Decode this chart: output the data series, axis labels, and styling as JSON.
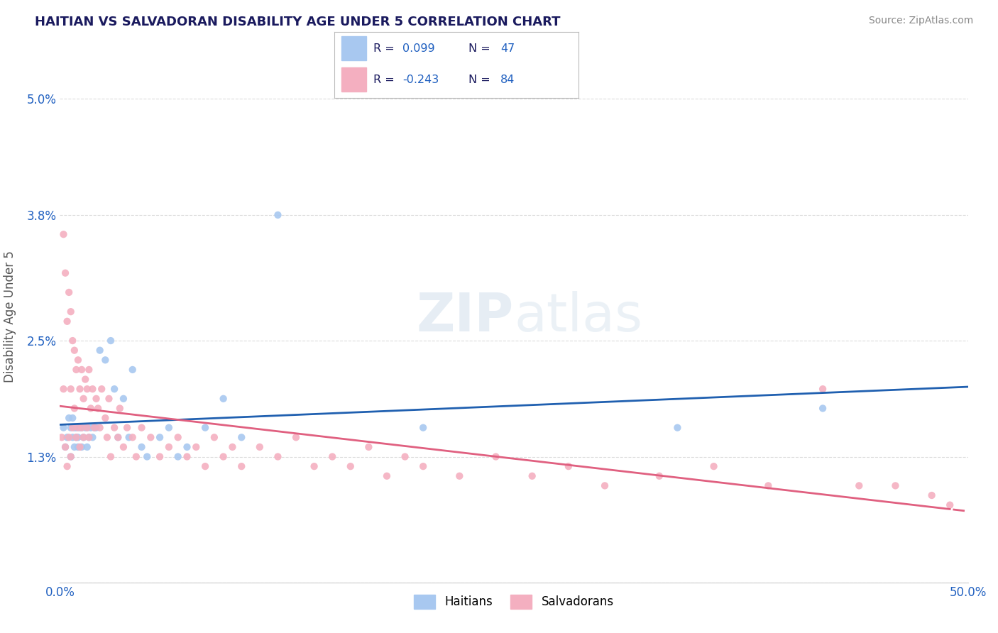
{
  "title": "HAITIAN VS SALVADORAN DISABILITY AGE UNDER 5 CORRELATION CHART",
  "source": "Source: ZipAtlas.com",
  "ylabel": "Disability Age Under 5",
  "xmin": 0.0,
  "xmax": 0.5,
  "ymin": 0.0,
  "ymax": 0.055,
  "yticks": [
    0.0,
    0.013,
    0.025,
    0.038,
    0.05
  ],
  "ytick_labels": [
    "",
    "1.3%",
    "2.5%",
    "3.8%",
    "5.0%"
  ],
  "xticks": [
    0.0,
    0.5
  ],
  "xtick_labels": [
    "0.0%",
    "50.0%"
  ],
  "color_haitian": "#a8c8f0",
  "color_salvadoran": "#f4afc0",
  "line_color_haitian": "#2060b0",
  "line_color_salvadoran": "#e06080",
  "background_color": "#ffffff",
  "grid_color": "#cccccc",
  "title_color": "#1a1a5e",
  "source_color": "#888888",
  "legend_text_color": "#1a1a5e",
  "legend_num_color": "#2060c0",
  "haitian_x": [
    0.002,
    0.003,
    0.004,
    0.005,
    0.006,
    0.006,
    0.007,
    0.007,
    0.008,
    0.008,
    0.009,
    0.009,
    0.01,
    0.01,
    0.011,
    0.012,
    0.012,
    0.013,
    0.014,
    0.015,
    0.015,
    0.016,
    0.017,
    0.018,
    0.019,
    0.02,
    0.022,
    0.025,
    0.028,
    0.03,
    0.032,
    0.035,
    0.038,
    0.04,
    0.045,
    0.048,
    0.055,
    0.06,
    0.065,
    0.07,
    0.08,
    0.09,
    0.1,
    0.12,
    0.2,
    0.34,
    0.42
  ],
  "haitian_y": [
    0.016,
    0.014,
    0.015,
    0.017,
    0.013,
    0.016,
    0.015,
    0.017,
    0.014,
    0.016,
    0.015,
    0.016,
    0.014,
    0.015,
    0.016,
    0.014,
    0.016,
    0.015,
    0.016,
    0.014,
    0.016,
    0.015,
    0.016,
    0.015,
    0.016,
    0.016,
    0.024,
    0.023,
    0.025,
    0.02,
    0.015,
    0.019,
    0.015,
    0.022,
    0.014,
    0.013,
    0.015,
    0.016,
    0.013,
    0.014,
    0.016,
    0.019,
    0.015,
    0.038,
    0.016,
    0.016,
    0.018
  ],
  "salvadoran_x": [
    0.001,
    0.002,
    0.002,
    0.003,
    0.004,
    0.005,
    0.005,
    0.006,
    0.006,
    0.007,
    0.007,
    0.008,
    0.008,
    0.009,
    0.009,
    0.01,
    0.01,
    0.011,
    0.011,
    0.012,
    0.012,
    0.013,
    0.013,
    0.014,
    0.015,
    0.015,
    0.016,
    0.016,
    0.017,
    0.018,
    0.019,
    0.02,
    0.021,
    0.022,
    0.023,
    0.025,
    0.026,
    0.027,
    0.028,
    0.03,
    0.032,
    0.033,
    0.035,
    0.037,
    0.04,
    0.042,
    0.045,
    0.05,
    0.055,
    0.06,
    0.065,
    0.07,
    0.075,
    0.08,
    0.085,
    0.09,
    0.095,
    0.1,
    0.11,
    0.12,
    0.13,
    0.14,
    0.15,
    0.16,
    0.17,
    0.18,
    0.19,
    0.2,
    0.22,
    0.24,
    0.26,
    0.28,
    0.3,
    0.33,
    0.36,
    0.39,
    0.42,
    0.44,
    0.46,
    0.48,
    0.49,
    0.003,
    0.004,
    0.006
  ],
  "salvadoran_y": [
    0.015,
    0.036,
    0.02,
    0.032,
    0.027,
    0.03,
    0.015,
    0.028,
    0.02,
    0.025,
    0.016,
    0.024,
    0.018,
    0.022,
    0.015,
    0.023,
    0.016,
    0.02,
    0.014,
    0.022,
    0.016,
    0.019,
    0.015,
    0.021,
    0.02,
    0.016,
    0.022,
    0.015,
    0.018,
    0.02,
    0.016,
    0.019,
    0.018,
    0.016,
    0.02,
    0.017,
    0.015,
    0.019,
    0.013,
    0.016,
    0.015,
    0.018,
    0.014,
    0.016,
    0.015,
    0.013,
    0.016,
    0.015,
    0.013,
    0.014,
    0.015,
    0.013,
    0.014,
    0.012,
    0.015,
    0.013,
    0.014,
    0.012,
    0.014,
    0.013,
    0.015,
    0.012,
    0.013,
    0.012,
    0.014,
    0.011,
    0.013,
    0.012,
    0.011,
    0.013,
    0.011,
    0.012,
    0.01,
    0.011,
    0.012,
    0.01,
    0.02,
    0.01,
    0.01,
    0.009,
    0.008,
    0.014,
    0.012,
    0.013
  ],
  "watermark_text": "ZIPatlas",
  "legend_label_haitian": "Haitians",
  "legend_label_salvadoran": "Salvadorans"
}
